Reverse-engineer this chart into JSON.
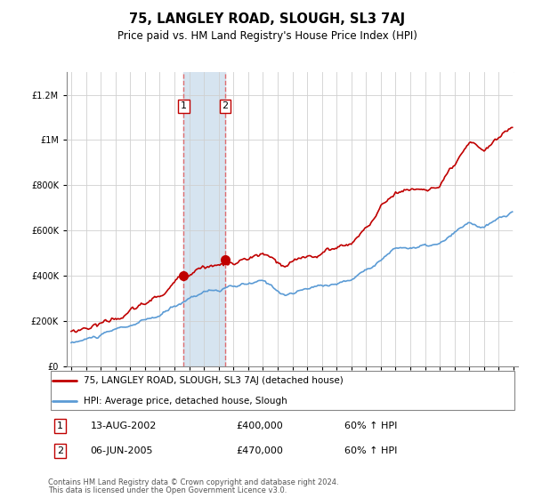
{
  "title": "75, LANGLEY ROAD, SLOUGH, SL3 7AJ",
  "subtitle": "Price paid vs. HM Land Registry's House Price Index (HPI)",
  "hpi_label": "HPI: Average price, detached house, Slough",
  "property_label": "75, LANGLEY ROAD, SLOUGH, SL3 7AJ (detached house)",
  "footnote1": "Contains HM Land Registry data © Crown copyright and database right 2024.",
  "footnote2": "This data is licensed under the Open Government Licence v3.0.",
  "transactions": [
    {
      "num": 1,
      "date": "13-AUG-2002",
      "price": 400000,
      "year": 2002.62,
      "hpi_pct": "60% ↑ HPI"
    },
    {
      "num": 2,
      "date": "06-JUN-2005",
      "price": 470000,
      "year": 2005.44,
      "hpi_pct": "60% ↑ HPI"
    }
  ],
  "hpi_color": "#5b9bd5",
  "property_color": "#c00000",
  "shaded_color": "#d6e4f0",
  "ylim": [
    0,
    1300000
  ],
  "yticks": [
    0,
    200000,
    400000,
    600000,
    800000,
    1000000,
    1200000
  ],
  "xlim_start": 1994.7,
  "xlim_end": 2025.3
}
